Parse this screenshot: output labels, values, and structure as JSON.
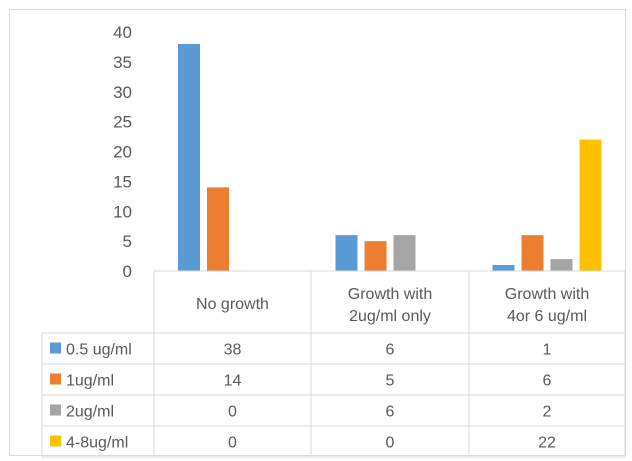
{
  "chart_data": {
    "type": "bar",
    "categories": [
      [
        "No growth"
      ],
      [
        "Growth with",
        "2ug/ml only"
      ],
      [
        "Growth with",
        "4or 6 ug/ml"
      ]
    ],
    "series": [
      {
        "name": "0.5 ug/ml",
        "color": "#5b9bd5",
        "values": [
          38,
          6,
          1
        ]
      },
      {
        "name": "1ug/ml",
        "color": "#ed7d31",
        "values": [
          14,
          5,
          6
        ]
      },
      {
        "name": "2ug/ml",
        "color": "#a5a5a5",
        "values": [
          0,
          6,
          2
        ]
      },
      {
        "name": "4-8ug/ml",
        "color": "#ffc000",
        "values": [
          0,
          0,
          22
        ]
      }
    ],
    "yticks": [
      "0",
      "5",
      "10",
      "15",
      "20",
      "25",
      "30",
      "35",
      "40"
    ],
    "ylim": [
      0,
      40
    ],
    "legend": "data-table",
    "grid": false
  }
}
